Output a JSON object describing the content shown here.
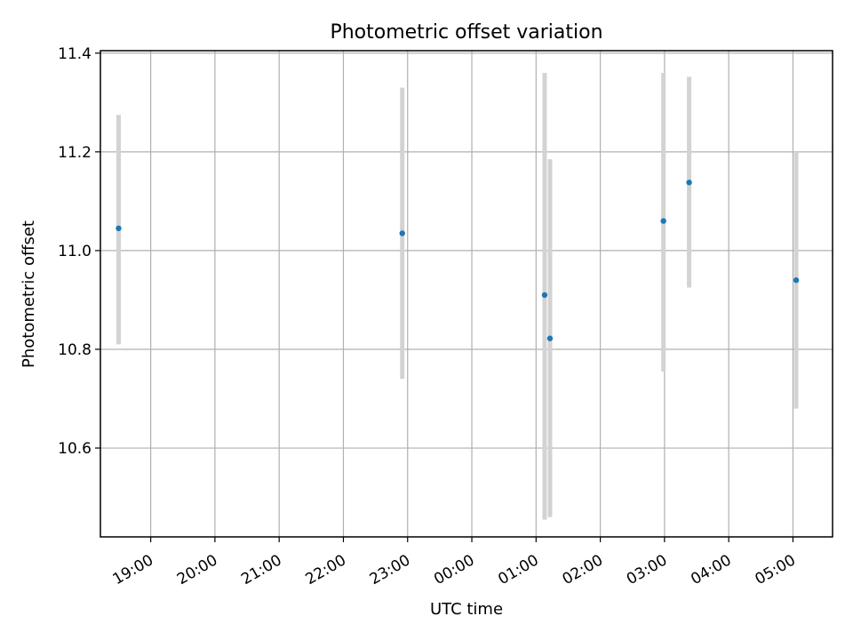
{
  "chart_data": {
    "type": "scatter",
    "title": "Photometric offset variation",
    "xlabel": "UTC time",
    "ylabel": "Photometric offset",
    "x_ticks": [
      "19:00",
      "20:00",
      "21:00",
      "22:00",
      "23:00",
      "00:00",
      "01:00",
      "02:00",
      "03:00",
      "04:00",
      "05:00"
    ],
    "y_ticks": [
      "10.6",
      "10.8",
      "11.0",
      "11.2",
      "11.4"
    ],
    "ylim": [
      10.42,
      11.405
    ],
    "xlim": [
      "18:13",
      "05:37"
    ],
    "grid": true,
    "points": [
      {
        "time": "18:30",
        "y": 11.045,
        "err_low": 10.81,
        "err_high": 11.275
      },
      {
        "time": "22:55",
        "y": 11.035,
        "err_low": 10.74,
        "err_high": 11.33
      },
      {
        "time": "01:08",
        "y": 10.91,
        "err_low": 10.455,
        "err_high": 11.36
      },
      {
        "time": "01:13",
        "y": 10.822,
        "err_low": 10.46,
        "err_high": 11.185
      },
      {
        "time": "02:59",
        "y": 11.06,
        "err_low": 10.755,
        "err_high": 11.36
      },
      {
        "time": "03:23",
        "y": 11.138,
        "err_low": 10.925,
        "err_high": 11.352
      },
      {
        "time": "05:03",
        "y": 10.94,
        "err_low": 10.68,
        "err_high": 11.2
      }
    ],
    "colors": {
      "point": "#1f77b4",
      "errorbar": "#d3d3d3",
      "grid": "#b0b0b0"
    }
  }
}
